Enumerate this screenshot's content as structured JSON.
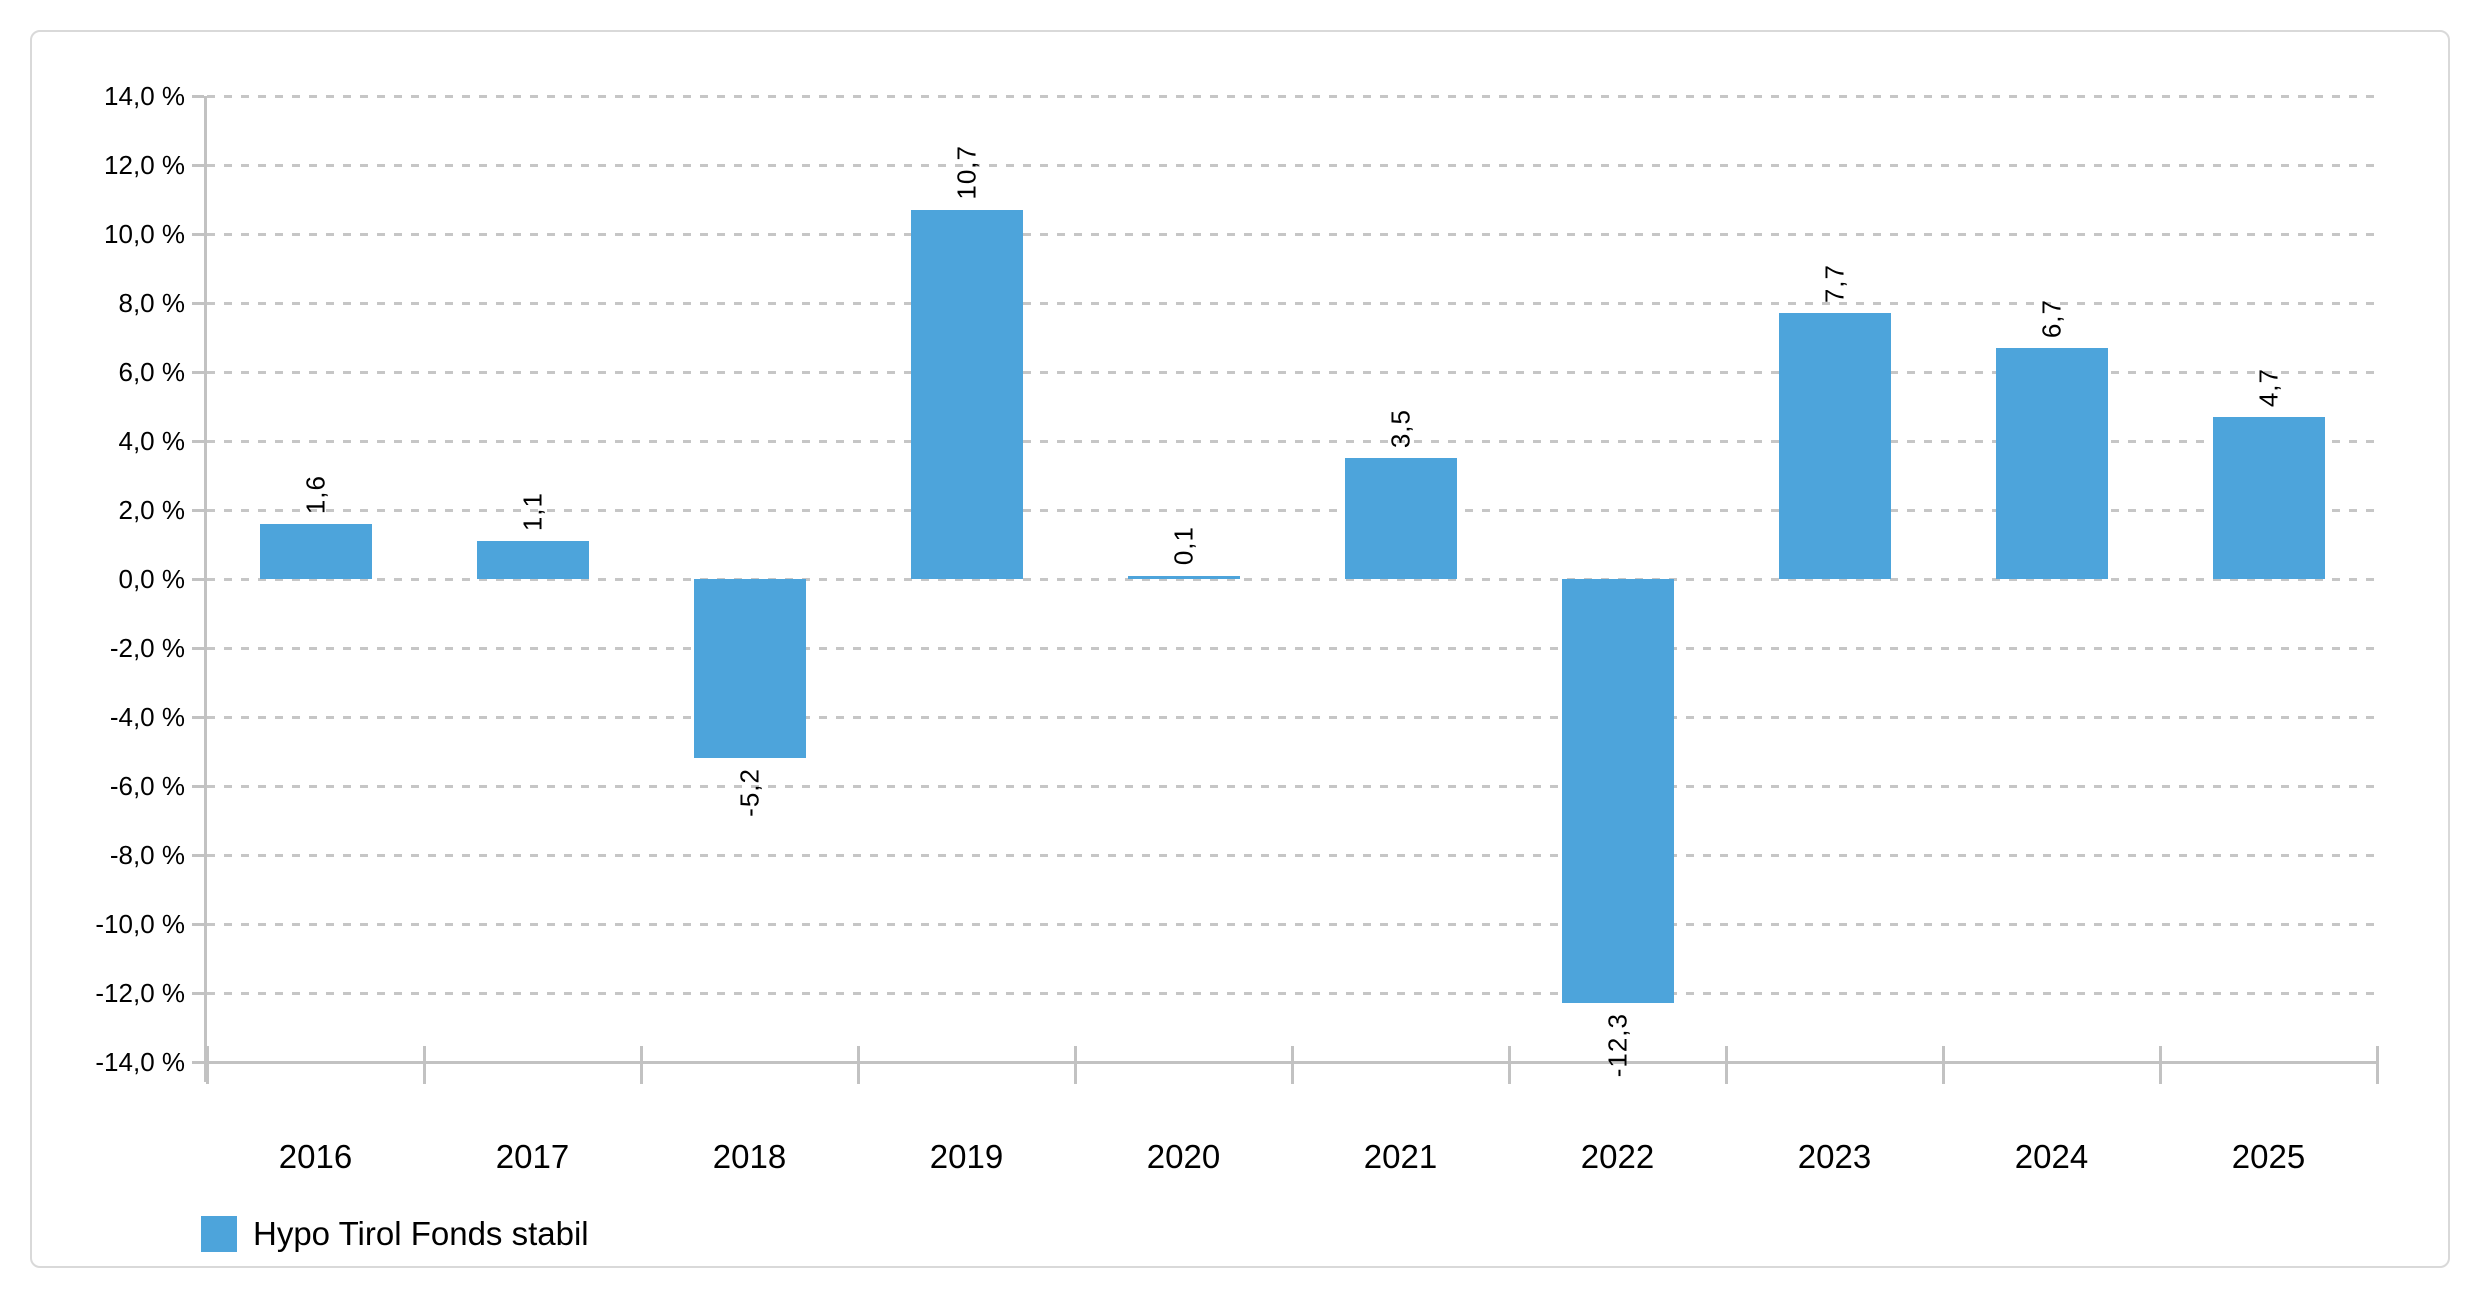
{
  "chart_data": {
    "type": "bar",
    "title": "",
    "xlabel": "",
    "ylabel": "",
    "categories": [
      "2016",
      "2017",
      "2018",
      "2019",
      "2020",
      "2021",
      "2022",
      "2023",
      "2024",
      "2025"
    ],
    "series": [
      {
        "name": "Hypo Tirol Fonds stabil",
        "values": [
          1.6,
          1.1,
          -5.2,
          10.7,
          0.1,
          3.5,
          -12.3,
          7.7,
          6.7,
          4.7
        ],
        "labels": [
          "1,6",
          "1,1",
          "-5,2",
          "10,7",
          "0,1",
          "3,5",
          "-12,3",
          "7,7",
          "6,7",
          "4,7"
        ]
      }
    ],
    "ylim": [
      -14,
      14
    ],
    "y_ticks": [
      {
        "value": 14,
        "label": "14,0 %"
      },
      {
        "value": 12,
        "label": "12,0 %"
      },
      {
        "value": 10,
        "label": "10,0 %"
      },
      {
        "value": 8,
        "label": "8,0 %"
      },
      {
        "value": 6,
        "label": "6,0 %"
      },
      {
        "value": 4,
        "label": "4,0 %"
      },
      {
        "value": 2,
        "label": "2,0 %"
      },
      {
        "value": 0,
        "label": "0,0 %"
      },
      {
        "value": -2,
        "label": "-2,0 %"
      },
      {
        "value": -4,
        "label": "-4,0 %"
      },
      {
        "value": -6,
        "label": "-6,0 %"
      },
      {
        "value": -8,
        "label": "-8,0 %"
      },
      {
        "value": -10,
        "label": "-10,0 %"
      },
      {
        "value": -12,
        "label": "-12,0 %"
      },
      {
        "value": -14,
        "label": "-14,0 %"
      }
    ],
    "grid": "horizontal-dashed",
    "legend_position": "bottom-left",
    "bar_label_rotation": "vertical-bottom-to-top"
  },
  "legend": {
    "label": "Hypo Tirol Fonds stabil"
  },
  "colors": {
    "bar": "#4DA4DB",
    "grid": "#C6C6C6",
    "axis": "#C2C2C2",
    "card_border": "#D9D9D9",
    "text": "#000000",
    "background": "#FFFFFF"
  }
}
